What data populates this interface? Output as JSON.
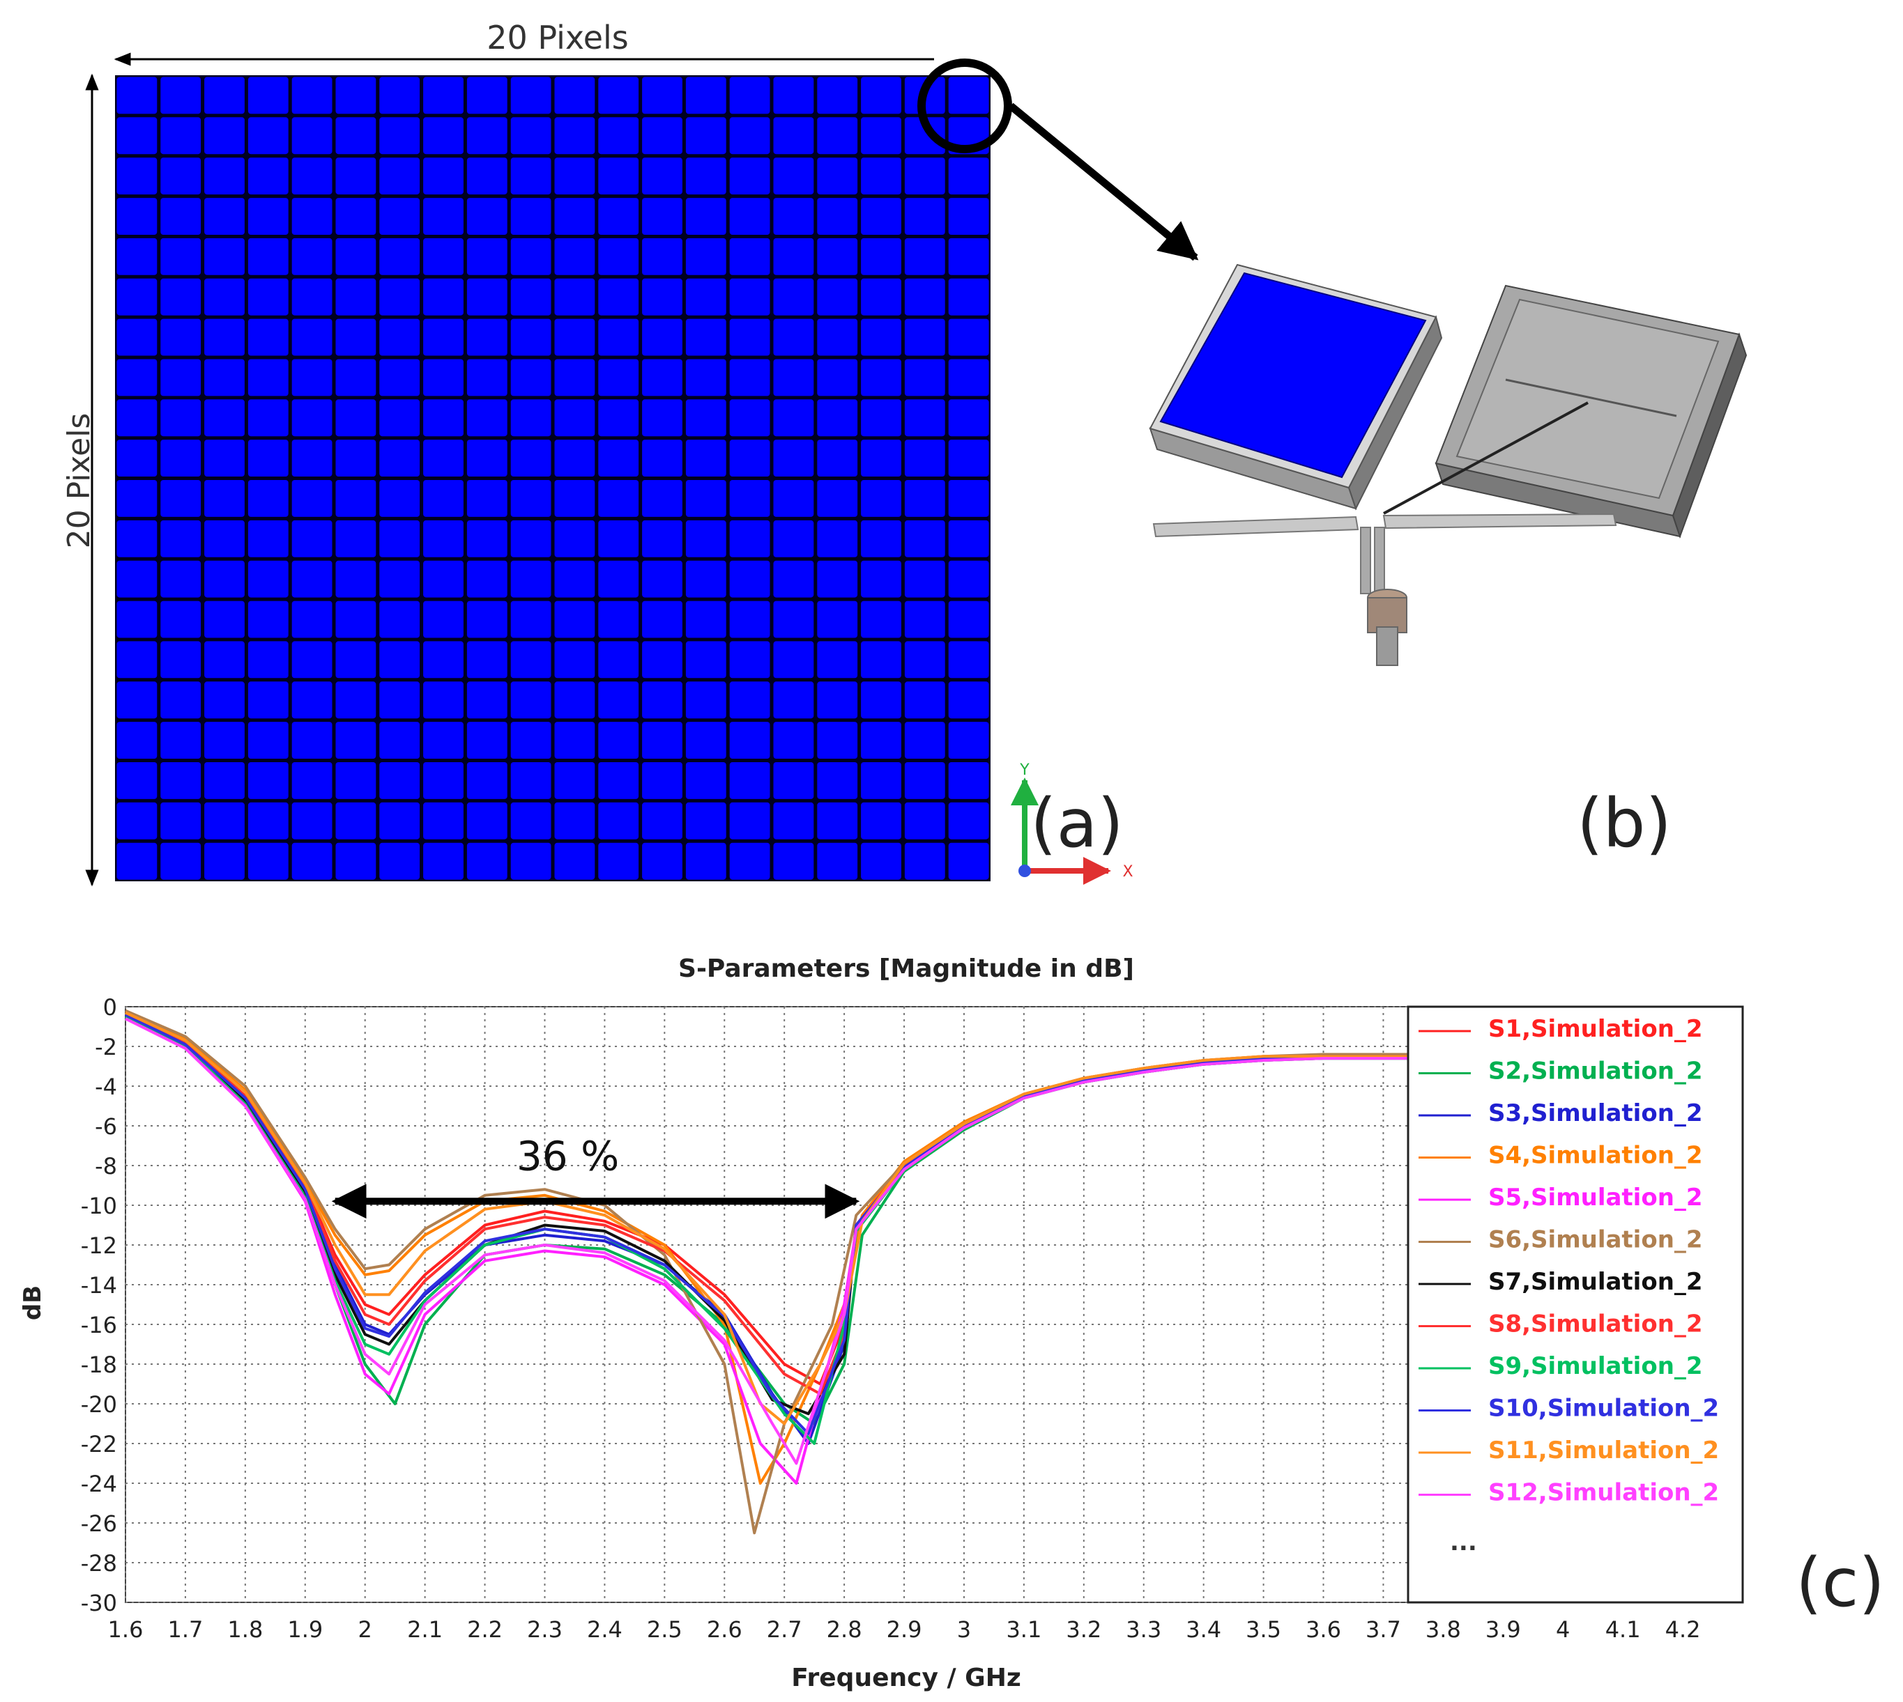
{
  "panel_a": {
    "dim_top_label": "20 Pixels",
    "dim_left_label": "20 Pixels",
    "panel_label": "(a)",
    "grid_rows": 20,
    "grid_cols": 20,
    "pixel_color": "#0000ff",
    "axis_y_label": "Y",
    "axis_x_label": "X"
  },
  "panel_b": {
    "panel_label": "(b)"
  },
  "panel_c": {
    "panel_label": "(c)"
  },
  "chart_data": {
    "type": "line",
    "title": "S-Parameters [Magnitude in dB]",
    "xlabel": "Frequency / GHz",
    "ylabel": "dB",
    "xlim": [
      1.6,
      4.3
    ],
    "ylim": [
      -30,
      0
    ],
    "x_ticks": [
      "1.6",
      "1.7",
      "1.8",
      "1.9",
      "2",
      "2.1",
      "2.2",
      "2.3",
      "2.4",
      "2.5",
      "2.6",
      "2.7",
      "2.8",
      "2.9",
      "3",
      "3.1",
      "3.2",
      "3.3",
      "3.4",
      "3.5",
      "3.6",
      "3.7",
      "3.8",
      "3.9",
      "4",
      "4.1",
      "4.2"
    ],
    "y_ticks": [
      "0",
      "-2",
      "-4",
      "-6",
      "-8",
      "-10",
      "-12",
      "-14",
      "-16",
      "-18",
      "-20",
      "-22",
      "-24",
      "-26",
      "-28",
      "-30"
    ],
    "grid": true,
    "legend_position": "right",
    "legend_more": "...",
    "annotation": {
      "text": "36 %",
      "x_start": 1.95,
      "x_end": 2.82,
      "y": -9.8
    },
    "series": [
      {
        "name": "S1,Simulation_2",
        "color": "#ff2020",
        "x": [
          1.6,
          1.7,
          1.8,
          1.9,
          1.95,
          2.0,
          2.04,
          2.1,
          2.2,
          2.3,
          2.4,
          2.5,
          2.6,
          2.7,
          2.76,
          2.8,
          2.82,
          2.9,
          3.0,
          3.1,
          3.2,
          3.3,
          3.4,
          3.5,
          3.6,
          3.75
        ],
        "y": [
          -0.3,
          -1.8,
          -4.5,
          -9,
          -12.5,
          -15,
          -15.5,
          -13.5,
          -11,
          -10.3,
          -10.8,
          -12,
          -14.5,
          -18,
          -19,
          -16,
          -11,
          -8,
          -6,
          -4.5,
          -3.7,
          -3.2,
          -2.8,
          -2.6,
          -2.5,
          -2.5
        ]
      },
      {
        "name": "S2,Simulation_2",
        "color": "#00b050",
        "x": [
          1.6,
          1.7,
          1.8,
          1.9,
          1.95,
          2.0,
          2.05,
          2.1,
          2.2,
          2.3,
          2.4,
          2.5,
          2.6,
          2.7,
          2.75,
          2.8,
          2.83,
          2.9,
          3.0,
          3.1,
          3.2,
          3.3,
          3.4,
          3.5,
          3.6,
          3.75
        ],
        "y": [
          -0.5,
          -2,
          -4.8,
          -9.5,
          -14,
          -18,
          -20,
          -16,
          -12.5,
          -12,
          -12.2,
          -13.5,
          -16,
          -20,
          -21,
          -18,
          -11.5,
          -8.3,
          -6.2,
          -4.6,
          -3.8,
          -3.3,
          -2.9,
          -2.7,
          -2.6,
          -2.6
        ]
      },
      {
        "name": "S3,Simulation_2",
        "color": "#2020d0",
        "x": [
          1.6,
          1.7,
          1.8,
          1.9,
          1.95,
          2.0,
          2.04,
          2.1,
          2.2,
          2.3,
          2.4,
          2.5,
          2.6,
          2.68,
          2.74,
          2.8,
          2.82,
          2.9,
          3.0,
          3.1,
          3.2,
          3.3,
          3.4,
          3.5,
          3.6,
          3.75
        ],
        "y": [
          -0.4,
          -1.9,
          -4.6,
          -9.2,
          -13,
          -16,
          -16.5,
          -14.5,
          -12,
          -11.5,
          -11.8,
          -13,
          -15.5,
          -19.5,
          -22,
          -17,
          -11,
          -8.1,
          -6,
          -4.5,
          -3.7,
          -3.2,
          -2.8,
          -2.6,
          -2.5,
          -2.5
        ]
      },
      {
        "name": "S4,Simulation_2",
        "color": "#ff8000",
        "x": [
          1.6,
          1.7,
          1.8,
          1.9,
          1.95,
          2.0,
          2.04,
          2.1,
          2.2,
          2.3,
          2.4,
          2.5,
          2.6,
          2.66,
          2.7,
          2.76,
          2.8,
          2.83,
          2.9,
          3.0,
          3.1,
          3.2,
          3.3,
          3.4,
          3.5,
          3.6,
          3.75
        ],
        "y": [
          -0.2,
          -1.6,
          -4.2,
          -8.8,
          -11.5,
          -13.5,
          -13.3,
          -11.5,
          -9.8,
          -9.5,
          -10.3,
          -12,
          -16,
          -24,
          -22,
          -18,
          -15,
          -10.5,
          -7.8,
          -5.8,
          -4.4,
          -3.6,
          -3.1,
          -2.7,
          -2.5,
          -2.5,
          -2.5
        ]
      },
      {
        "name": "S5,Simulation_2",
        "color": "#ff20ff",
        "x": [
          1.6,
          1.7,
          1.8,
          1.9,
          1.95,
          2.0,
          2.04,
          2.1,
          2.2,
          2.3,
          2.4,
          2.5,
          2.6,
          2.66,
          2.72,
          2.8,
          2.82,
          2.9,
          3.0,
          3.1,
          3.2,
          3.3,
          3.4,
          3.5,
          3.6,
          3.75
        ],
        "y": [
          -0.6,
          -2.1,
          -5,
          -9.8,
          -14.5,
          -18.5,
          -19.5,
          -15.5,
          -12.8,
          -12.3,
          -12.6,
          -14,
          -17,
          -22,
          -24,
          -15,
          -11.2,
          -8.2,
          -6.1,
          -4.6,
          -3.8,
          -3.3,
          -2.9,
          -2.7,
          -2.6,
          -2.6
        ]
      },
      {
        "name": "S6,Simulation_2",
        "color": "#b08050",
        "x": [
          1.6,
          1.7,
          1.8,
          1.9,
          1.95,
          2.0,
          2.04,
          2.1,
          2.2,
          2.3,
          2.4,
          2.5,
          2.6,
          2.65,
          2.7,
          2.78,
          2.82,
          2.9,
          3.0,
          3.1,
          3.2,
          3.3,
          3.4,
          3.5,
          3.6,
          3.75
        ],
        "y": [
          -0.2,
          -1.5,
          -4,
          -8.6,
          -11.2,
          -13.2,
          -13,
          -11.2,
          -9.5,
          -9.2,
          -10,
          -12.5,
          -18,
          -26.5,
          -21,
          -16,
          -10.5,
          -7.9,
          -5.9,
          -4.4,
          -3.6,
          -3.1,
          -2.7,
          -2.5,
          -2.4,
          -2.4
        ]
      },
      {
        "name": "S7,Simulation_2",
        "color": "#101010",
        "x": [
          1.6,
          1.7,
          1.8,
          1.9,
          1.95,
          2.0,
          2.04,
          2.1,
          2.2,
          2.3,
          2.4,
          2.5,
          2.6,
          2.68,
          2.74,
          2.8,
          2.82,
          2.9,
          3.0,
          3.1,
          3.2,
          3.3,
          3.4,
          3.5,
          3.6,
          3.75
        ],
        "y": [
          -0.4,
          -1.9,
          -4.7,
          -9.3,
          -13.5,
          -16.5,
          -17,
          -14.8,
          -12,
          -11,
          -11.3,
          -12.8,
          -15.8,
          -19.8,
          -20.5,
          -17.5,
          -11,
          -8.1,
          -6,
          -4.5,
          -3.7,
          -3.2,
          -2.8,
          -2.6,
          -2.5,
          -2.5
        ]
      },
      {
        "name": "S8,Simulation_2",
        "color": "#ff3030",
        "x": [
          1.6,
          1.7,
          1.8,
          1.9,
          1.95,
          2.0,
          2.04,
          2.1,
          2.2,
          2.3,
          2.4,
          2.5,
          2.6,
          2.7,
          2.76,
          2.8,
          2.82,
          2.9,
          3.0,
          3.1,
          3.2,
          3.3,
          3.4,
          3.5,
          3.6,
          3.75
        ],
        "y": [
          -0.3,
          -1.8,
          -4.5,
          -9.1,
          -12.8,
          -15.5,
          -16,
          -13.8,
          -11.2,
          -10.6,
          -11,
          -12.3,
          -14.8,
          -18.5,
          -19.5,
          -16.5,
          -11,
          -8,
          -6,
          -4.5,
          -3.7,
          -3.2,
          -2.8,
          -2.6,
          -2.5,
          -2.5
        ]
      },
      {
        "name": "S9,Simulation_2",
        "color": "#00c060",
        "x": [
          1.6,
          1.7,
          1.8,
          1.9,
          1.95,
          2.0,
          2.04,
          2.1,
          2.2,
          2.3,
          2.4,
          2.5,
          2.6,
          2.7,
          2.75,
          2.8,
          2.82,
          2.9,
          3.0,
          3.1,
          3.2,
          3.3,
          3.4,
          3.5,
          3.6,
          3.75
        ],
        "y": [
          -0.5,
          -2,
          -4.9,
          -9.6,
          -13.8,
          -17,
          -17.5,
          -14.8,
          -12,
          -11.2,
          -11.6,
          -13.2,
          -16.2,
          -20.5,
          -22,
          -16,
          -11.3,
          -8.2,
          -6.1,
          -4.6,
          -3.8,
          -3.3,
          -2.9,
          -2.7,
          -2.6,
          -2.6
        ]
      },
      {
        "name": "S10,Simulation_2",
        "color": "#3030e0",
        "x": [
          1.6,
          1.7,
          1.8,
          1.9,
          1.95,
          2.0,
          2.04,
          2.1,
          2.2,
          2.3,
          2.4,
          2.5,
          2.6,
          2.68,
          2.74,
          2.8,
          2.82,
          2.9,
          3.0,
          3.1,
          3.2,
          3.3,
          3.4,
          3.5,
          3.6,
          3.75
        ],
        "y": [
          -0.4,
          -1.9,
          -4.6,
          -9.2,
          -13.2,
          -16.2,
          -16.6,
          -14.4,
          -11.8,
          -11.2,
          -11.6,
          -13,
          -15.6,
          -19.6,
          -21.5,
          -16.8,
          -11,
          -8.1,
          -6,
          -4.5,
          -3.7,
          -3.2,
          -2.8,
          -2.6,
          -2.5,
          -2.5
        ]
      },
      {
        "name": "S11,Simulation_2",
        "color": "#ff9020",
        "x": [
          1.6,
          1.7,
          1.8,
          1.9,
          1.95,
          2.0,
          2.04,
          2.1,
          2.2,
          2.3,
          2.4,
          2.5,
          2.6,
          2.66,
          2.7,
          2.76,
          2.8,
          2.83,
          2.9,
          3.0,
          3.1,
          3.2,
          3.3,
          3.4,
          3.5,
          3.6,
          3.75
        ],
        "y": [
          -0.3,
          -1.7,
          -4.3,
          -8.9,
          -12,
          -14.5,
          -14.5,
          -12.3,
          -10.2,
          -9.8,
          -10.5,
          -12.2,
          -15.5,
          -20,
          -21,
          -18,
          -15.5,
          -10.8,
          -7.9,
          -5.9,
          -4.4,
          -3.6,
          -3.1,
          -2.7,
          -2.5,
          -2.5,
          -2.5
        ]
      },
      {
        "name": "S12,Simulation_2",
        "color": "#ff40ff",
        "x": [
          1.6,
          1.7,
          1.8,
          1.9,
          1.95,
          2.0,
          2.04,
          2.1,
          2.2,
          2.3,
          2.4,
          2.5,
          2.6,
          2.68,
          2.72,
          2.8,
          2.82,
          2.9,
          3.0,
          3.1,
          3.2,
          3.3,
          3.4,
          3.5,
          3.6,
          3.75
        ],
        "y": [
          -0.6,
          -2.1,
          -5,
          -9.7,
          -14,
          -17.5,
          -18.5,
          -15,
          -12.5,
          -12,
          -12.4,
          -13.8,
          -16.8,
          -21,
          -23,
          -15.5,
          -11.2,
          -8.2,
          -6.1,
          -4.6,
          -3.8,
          -3.3,
          -2.9,
          -2.7,
          -2.6,
          -2.6
        ]
      }
    ]
  }
}
